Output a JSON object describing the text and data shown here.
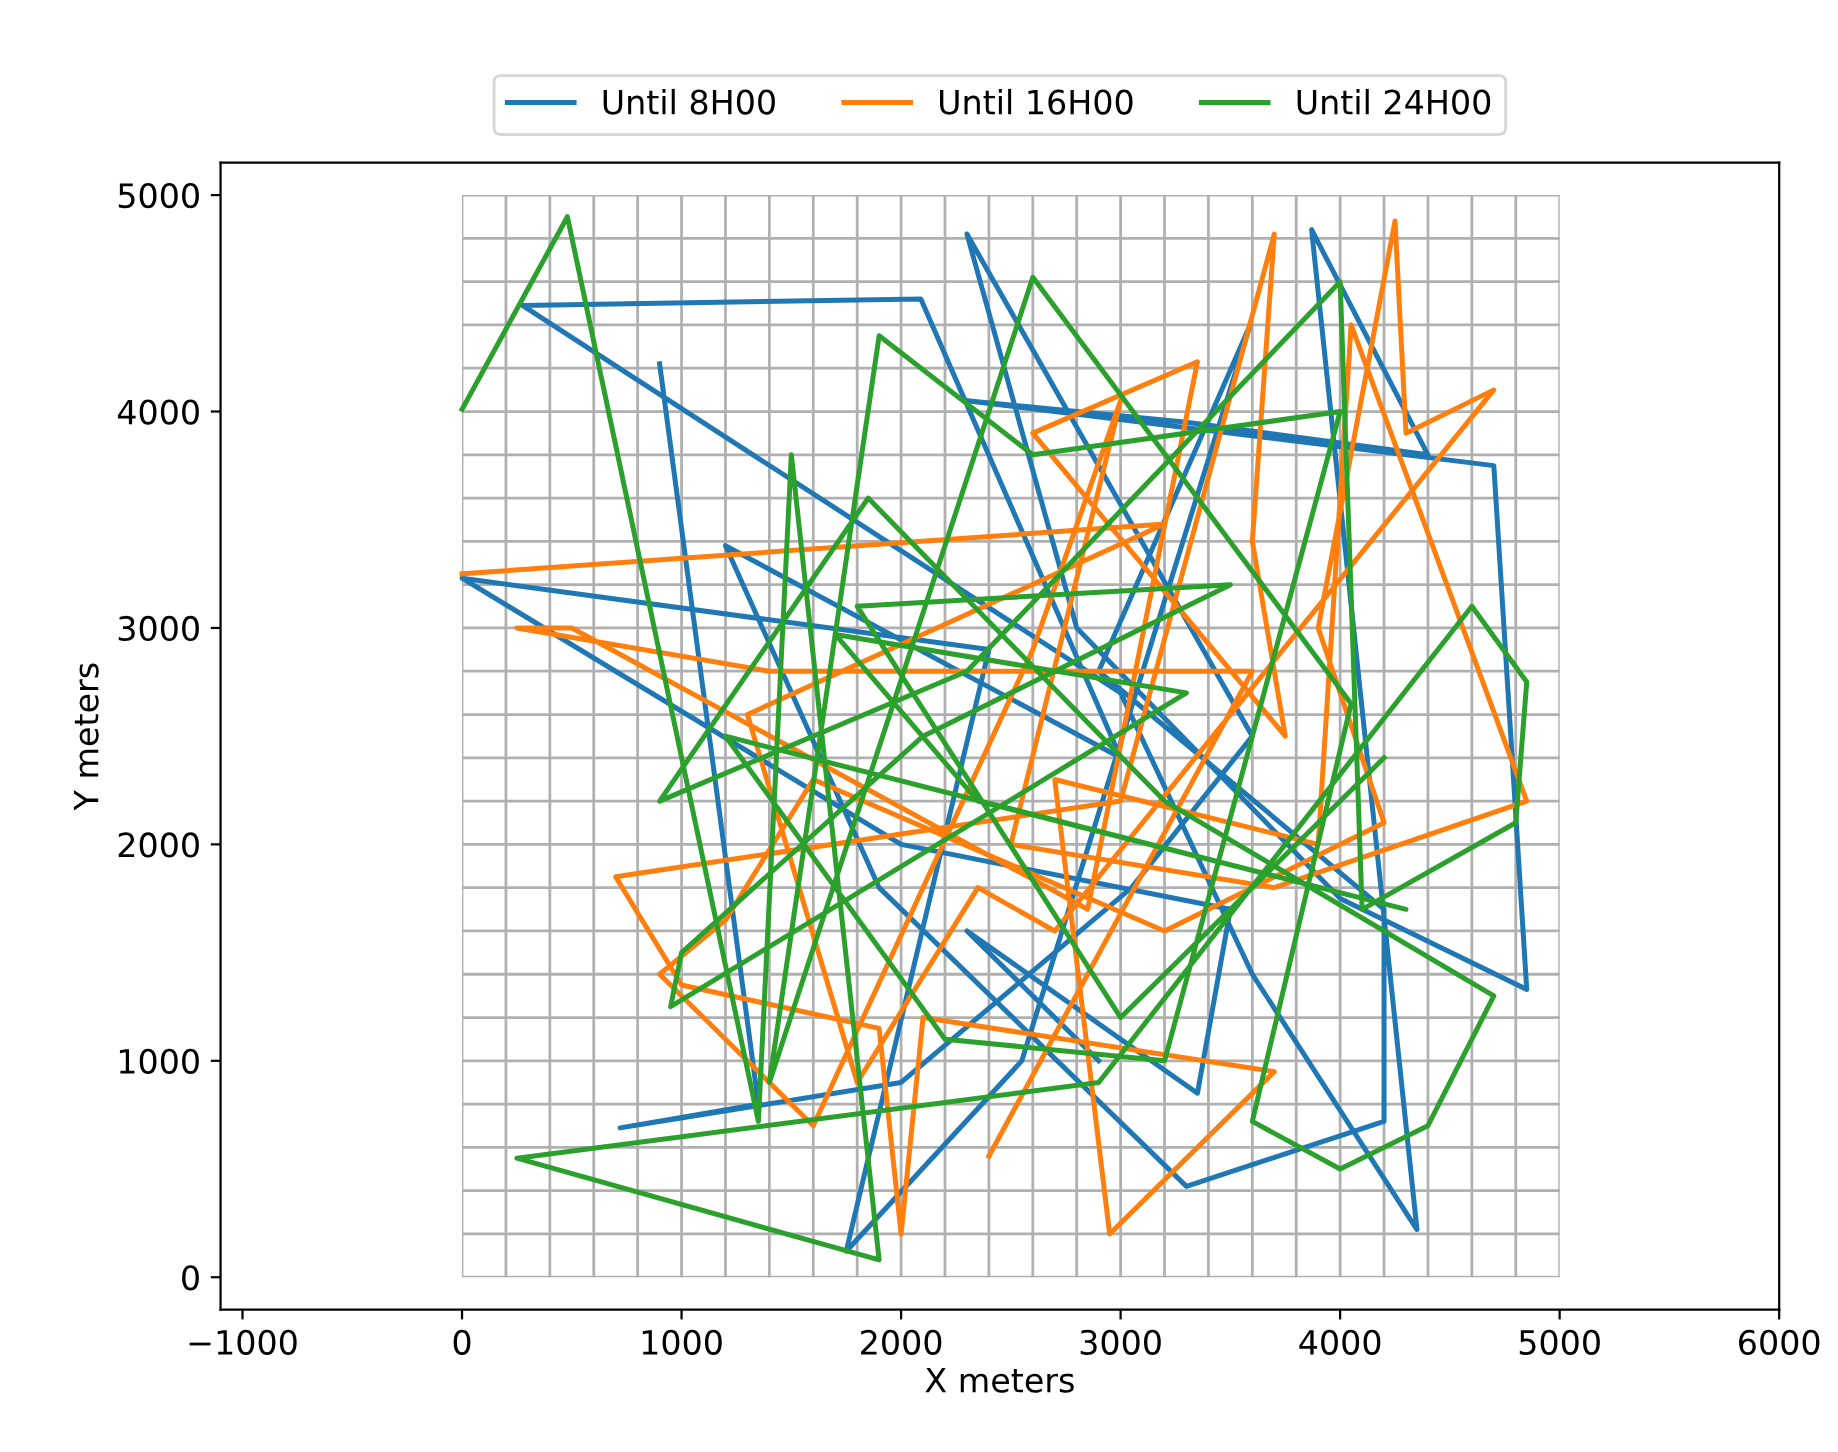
{
  "chart_data": {
    "type": "line",
    "xlabel": "X meters",
    "ylabel": "Y meters",
    "xlim": [
      -1100,
      6000
    ],
    "ylim": [
      -150,
      5150
    ],
    "xticks": [
      {
        "value": -1000,
        "label": "−1000"
      },
      0,
      1000,
      2000,
      3000,
      4000,
      5000,
      6000
    ],
    "yticks": [
      0,
      1000,
      2000,
      3000,
      4000,
      5000
    ],
    "grid": true,
    "legend": "top",
    "series": [
      {
        "name": "Until 8H00",
        "color": "#1f77b4",
        "x": [
          900,
          1350,
          720,
          2000,
          3050,
          3600,
          2300,
          2800,
          4000,
          4850,
          4700,
          2300,
          3300,
          4400,
          3870,
          4350,
          3600,
          3000,
          275,
          2090,
          3000,
          1200,
          1900,
          3300,
          4200,
          4200,
          2900,
          3590,
          2550,
          1750,
          2400,
          0,
          2000,
          3500,
          3350,
          2300,
          2900
        ],
        "values": [
          4220,
          800,
          690,
          900,
          1800,
          2500,
          4820,
          3000,
          1750,
          1330,
          3750,
          4050,
          3950,
          3800,
          4840,
          220,
          1400,
          2700,
          4490,
          4520,
          2400,
          3380,
          1800,
          420,
          720,
          1700,
          2800,
          4400,
          1000,
          120,
          2900,
          3230,
          2000,
          1700,
          850,
          1600,
          1000
        ]
      },
      {
        "name": "Until 16H00",
        "color": "#ff7f0e",
        "x": [
          0,
          3200,
          1300,
          1800,
          2350,
          2700,
          4700,
          4300,
          4250,
          3900,
          4200,
          3200,
          1600,
          1200,
          900,
          1600,
          2600,
          3000,
          2500,
          3700,
          4850,
          4050,
          3900,
          2700,
          2950,
          3700,
          2100,
          2000,
          1900,
          1000,
          700,
          3000,
          3700,
          3600,
          3750,
          2600,
          3350,
          2850,
          500,
          250,
          1400,
          3600,
          2400
        ],
        "values": [
          3250,
          3480,
          2600,
          900,
          1800,
          1600,
          4100,
          3900,
          4880,
          3000,
          2100,
          1600,
          2300,
          1650,
          1400,
          700,
          2900,
          4050,
          2000,
          1800,
          2200,
          4400,
          2000,
          2300,
          200,
          950,
          1200,
          200,
          1150,
          1350,
          1850,
          2200,
          4820,
          3400,
          2500,
          3900,
          4230,
          1700,
          3000,
          3000,
          2800,
          2800,
          560
        ]
      },
      {
        "name": "Until 24H00",
        "color": "#2ca02c",
        "x": [
          0,
          480,
          1350,
          1500,
          1900,
          250,
          2900,
          4600,
          4850,
          4800,
          4100,
          4000,
          2300,
          900,
          1850,
          3200,
          4700,
          4400,
          4000,
          3600,
          4050,
          2600,
          1400,
          1900,
          2600,
          4000,
          3200,
          2200,
          1200,
          4300,
          2350,
          1700,
          3300,
          950,
          1000,
          2100,
          3500,
          1800,
          3000,
          4200
        ],
        "values": [
          4010,
          4900,
          720,
          3800,
          80,
          550,
          900,
          3100,
          2750,
          2100,
          1700,
          4600,
          2800,
          2200,
          3600,
          2200,
          1300,
          700,
          500,
          720,
          2650,
          4620,
          900,
          4350,
          3800,
          4000,
          1000,
          1100,
          2500,
          1700,
          2200,
          2970,
          2700,
          1250,
          1500,
          2500,
          3200,
          3100,
          1200,
          2400
        ]
      }
    ]
  }
}
